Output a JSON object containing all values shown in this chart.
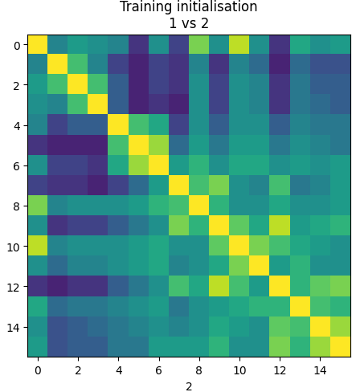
{
  "title_line1": "Training initialisation",
  "title_line2": "1 vs 2",
  "xlabel": "2",
  "cmap": "viridis",
  "matrix": [
    [
      1.0,
      0.45,
      0.55,
      0.5,
      0.45,
      0.15,
      0.5,
      0.2,
      0.8,
      0.5,
      0.9,
      0.5,
      0.15,
      0.6,
      0.5,
      0.55
    ],
    [
      0.45,
      1.0,
      0.7,
      0.45,
      0.2,
      0.1,
      0.2,
      0.15,
      0.45,
      0.15,
      0.45,
      0.35,
      0.1,
      0.35,
      0.25,
      0.25
    ],
    [
      0.55,
      0.7,
      1.0,
      0.7,
      0.3,
      0.1,
      0.2,
      0.15,
      0.5,
      0.2,
      0.5,
      0.45,
      0.15,
      0.4,
      0.3,
      0.3
    ],
    [
      0.5,
      0.45,
      0.7,
      1.0,
      0.3,
      0.1,
      0.15,
      0.1,
      0.5,
      0.2,
      0.5,
      0.45,
      0.15,
      0.4,
      0.35,
      0.3
    ],
    [
      0.45,
      0.2,
      0.3,
      0.3,
      1.0,
      0.7,
      0.6,
      0.2,
      0.5,
      0.3,
      0.5,
      0.5,
      0.3,
      0.45,
      0.4,
      0.4
    ],
    [
      0.15,
      0.1,
      0.1,
      0.1,
      0.7,
      1.0,
      0.85,
      0.35,
      0.55,
      0.4,
      0.55,
      0.55,
      0.4,
      0.5,
      0.45,
      0.4
    ],
    [
      0.5,
      0.2,
      0.2,
      0.15,
      0.6,
      0.85,
      1.0,
      0.55,
      0.65,
      0.5,
      0.6,
      0.6,
      0.5,
      0.55,
      0.5,
      0.55
    ],
    [
      0.2,
      0.15,
      0.15,
      0.1,
      0.2,
      0.35,
      0.55,
      1.0,
      0.7,
      0.8,
      0.5,
      0.45,
      0.7,
      0.4,
      0.45,
      0.55
    ],
    [
      0.8,
      0.45,
      0.5,
      0.5,
      0.5,
      0.55,
      0.65,
      0.7,
      1.0,
      0.65,
      0.5,
      0.5,
      0.6,
      0.5,
      0.5,
      0.55
    ],
    [
      0.5,
      0.15,
      0.2,
      0.2,
      0.3,
      0.4,
      0.5,
      0.8,
      0.65,
      1.0,
      0.75,
      0.6,
      0.9,
      0.55,
      0.6,
      0.65
    ],
    [
      0.9,
      0.45,
      0.5,
      0.5,
      0.5,
      0.55,
      0.6,
      0.5,
      0.5,
      0.75,
      1.0,
      0.8,
      0.7,
      0.6,
      0.55,
      0.5
    ],
    [
      0.5,
      0.35,
      0.45,
      0.45,
      0.5,
      0.55,
      0.6,
      0.45,
      0.5,
      0.6,
      0.8,
      1.0,
      0.55,
      0.65,
      0.5,
      0.5
    ],
    [
      0.15,
      0.1,
      0.15,
      0.15,
      0.3,
      0.4,
      0.5,
      0.7,
      0.6,
      0.9,
      0.7,
      0.55,
      1.0,
      0.65,
      0.75,
      0.8
    ],
    [
      0.6,
      0.35,
      0.4,
      0.4,
      0.45,
      0.5,
      0.55,
      0.4,
      0.5,
      0.55,
      0.6,
      0.65,
      0.65,
      1.0,
      0.7,
      0.65
    ],
    [
      0.5,
      0.25,
      0.3,
      0.35,
      0.4,
      0.45,
      0.5,
      0.45,
      0.5,
      0.6,
      0.55,
      0.5,
      0.75,
      0.7,
      1.0,
      0.85
    ],
    [
      0.55,
      0.25,
      0.3,
      0.3,
      0.4,
      0.4,
      0.55,
      0.55,
      0.55,
      0.65,
      0.5,
      0.5,
      0.8,
      0.65,
      0.85,
      1.0
    ]
  ],
  "figsize": [
    4.43,
    4.89
  ],
  "dpi": 100,
  "title_fontsize": 12,
  "label_fontsize": 10,
  "tick_fontsize": 10
}
